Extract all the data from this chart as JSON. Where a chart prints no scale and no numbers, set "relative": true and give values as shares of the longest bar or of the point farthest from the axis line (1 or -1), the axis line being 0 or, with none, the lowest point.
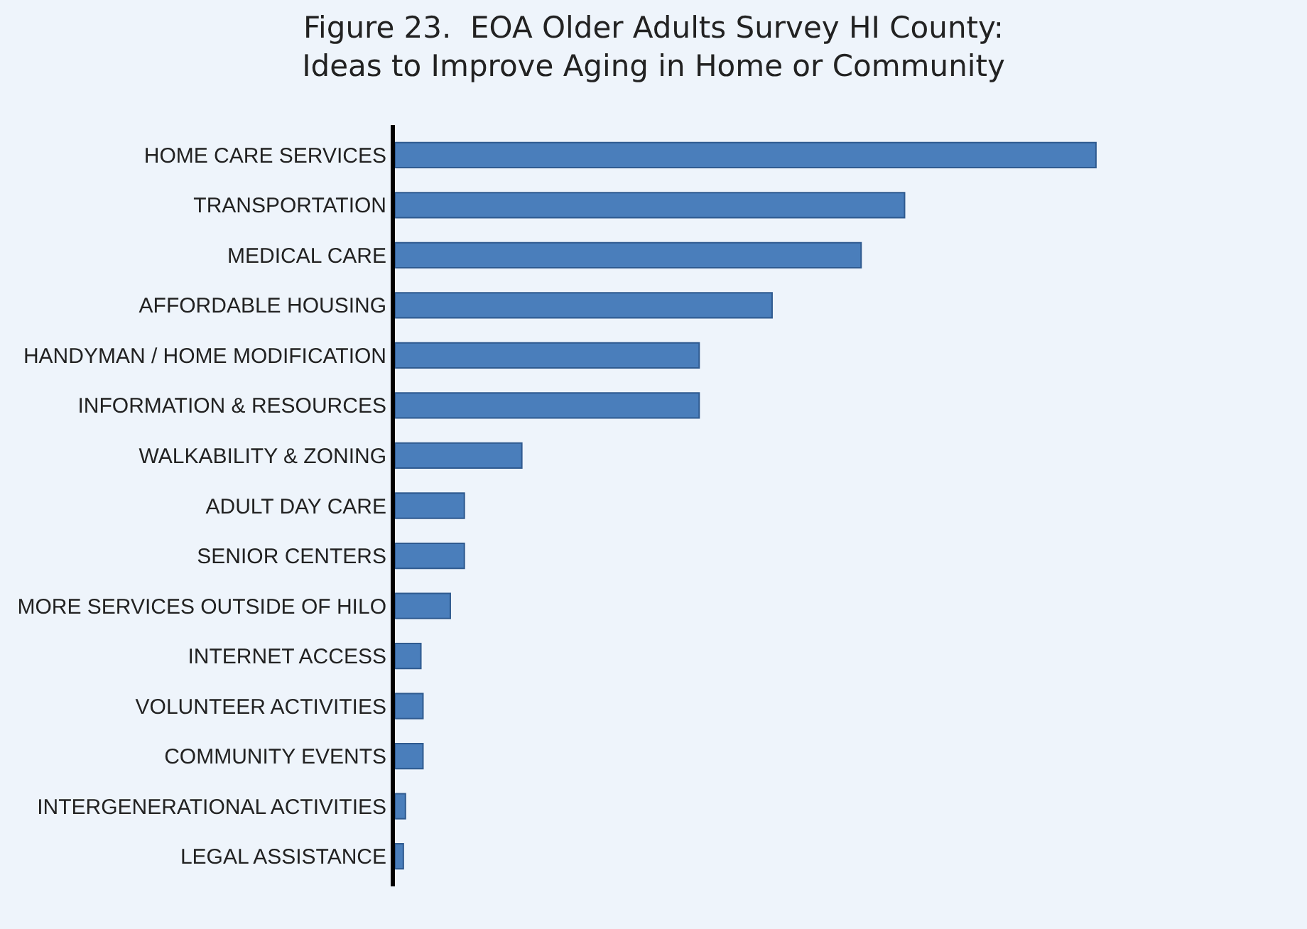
{
  "chart_data": {
    "type": "bar",
    "orientation": "horizontal",
    "relative": true,
    "title": "Figure 23.  EOA Older Adults Survey HI County:\nIdeas to Improve Aging in Home or Community",
    "categories": [
      "HOME CARE SERVICES",
      "TRANSPORTATION",
      "MEDICAL CARE",
      "AFFORDABLE HOUSING",
      "HANDYMAN / HOME MODIFICATION",
      "INFORMATION & RESOURCES",
      "WALKABILITY & ZONING",
      "ADULT DAY CARE",
      "SENIOR CENTERS",
      "MORE SERVICES OUTSIDE OF HILO",
      "INTERNET ACCESS",
      "VOLUNTEER ACTIVITIES",
      "COMMUNITY EVENTS",
      "INTERGENERATIONAL ACTIVITIES",
      "LEGAL ASSISTANCE"
    ],
    "values": [
      1,
      0.727,
      0.665,
      0.538,
      0.434,
      0.434,
      0.181,
      0.099,
      0.099,
      0.079,
      0.037,
      0.04,
      0.04,
      0.015,
      0.012
    ],
    "color": "#4a7ebb",
    "grid": false,
    "legend": false
  }
}
